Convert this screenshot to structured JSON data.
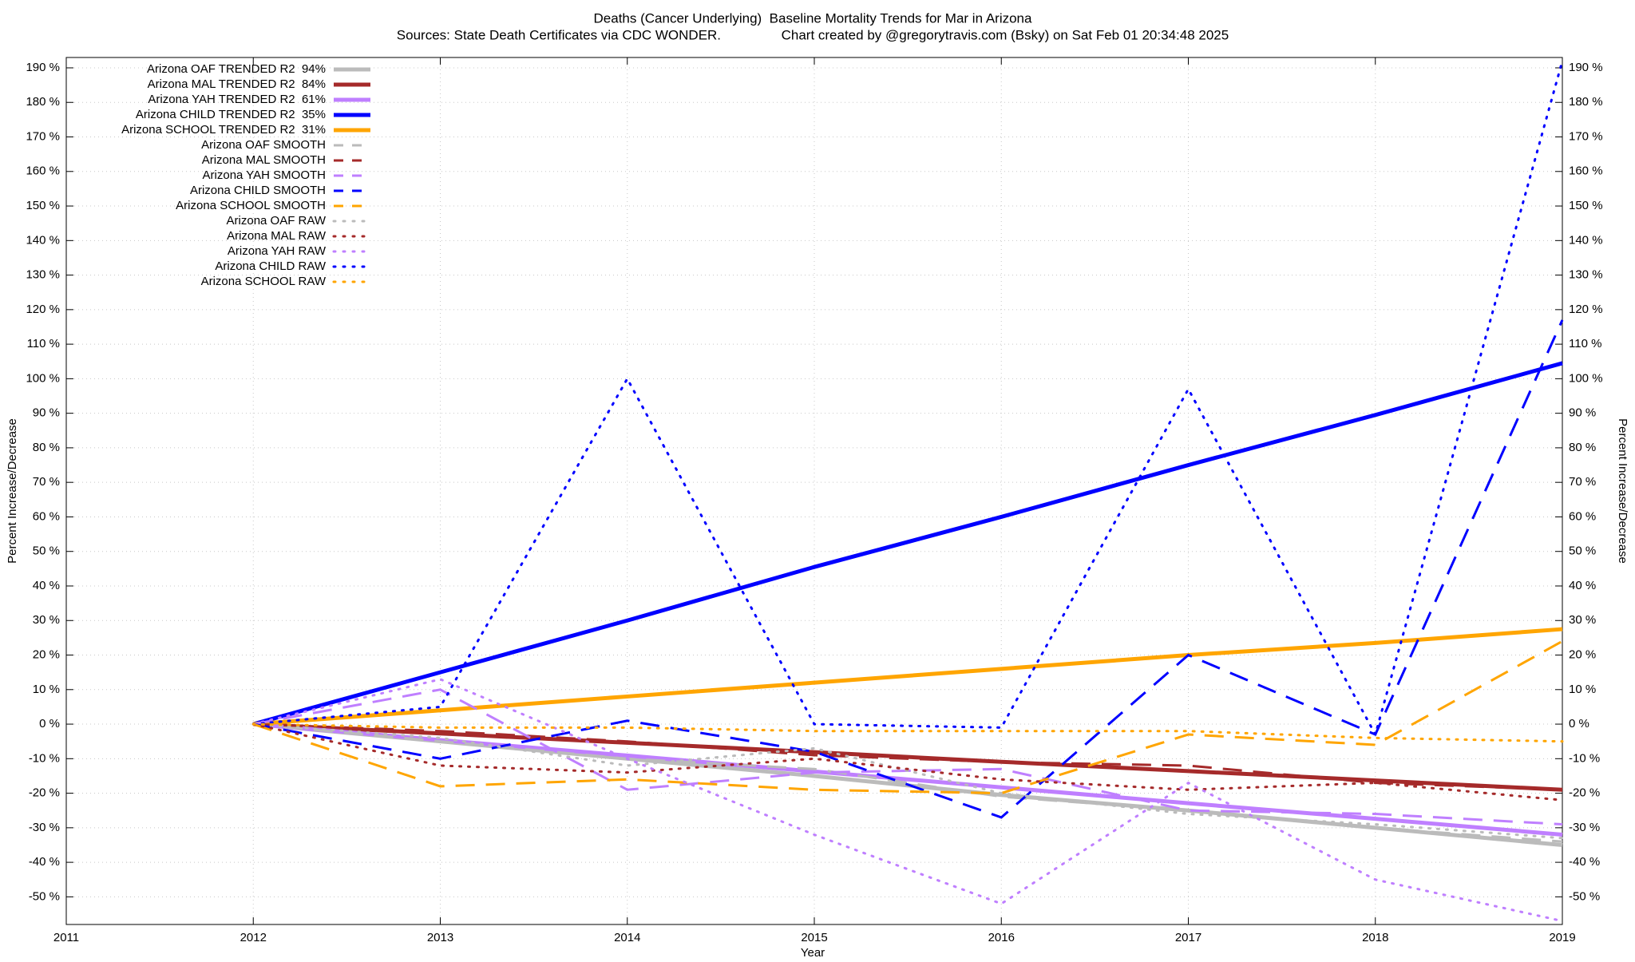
{
  "chart_data": {
    "type": "line",
    "title": "Deaths (Cancer Underlying)  Baseline Mortality Trends for Mar in Arizona",
    "subtitle": "Sources: State Death Certificates via CDC WONDER.                Chart created by @gregorytravis.com (Bsky) on Sat Feb 01 20:34:48 2025",
    "x_label": "Year",
    "y_label": "Percent Increase/Decrease",
    "x": [
      2012,
      2013,
      2014,
      2015,
      2016,
      2017,
      2018,
      2019
    ],
    "xlim": [
      2011,
      2019
    ],
    "xticks": [
      2011,
      2012,
      2013,
      2014,
      2015,
      2016,
      2017,
      2018,
      2019
    ],
    "ylim": [
      -58,
      193
    ],
    "yticks": [
      {
        "value": -50,
        "label": "-50 %"
      },
      {
        "value": -40,
        "label": "-40 %"
      },
      {
        "value": -30,
        "label": "-30 %"
      },
      {
        "value": -20,
        "label": "-20 %"
      },
      {
        "value": -10,
        "label": "-10 %"
      },
      {
        "value": 0,
        "label": "0 %"
      },
      {
        "value": 10,
        "label": "10 %"
      },
      {
        "value": 20,
        "label": "20 %"
      },
      {
        "value": 30,
        "label": "30 %"
      },
      {
        "value": 40,
        "label": "40 %"
      },
      {
        "value": 50,
        "label": "50 %"
      },
      {
        "value": 60,
        "label": "60 %"
      },
      {
        "value": 70,
        "label": "70 %"
      },
      {
        "value": 80,
        "label": "80 %"
      },
      {
        "value": 90,
        "label": "90 %"
      },
      {
        "value": 100,
        "label": "100 %"
      },
      {
        "value": 110,
        "label": "110 %"
      },
      {
        "value": 120,
        "label": "120 %"
      },
      {
        "value": 130,
        "label": "130 %"
      },
      {
        "value": 140,
        "label": "140 %"
      },
      {
        "value": 150,
        "label": "150 %"
      },
      {
        "value": 160,
        "label": "160 %"
      },
      {
        "value": 170,
        "label": "170 %"
      },
      {
        "value": 180,
        "label": "180 %"
      },
      {
        "value": 190,
        "label": "190 %"
      }
    ],
    "grid": true,
    "legend": "top-left",
    "series": [
      {
        "name": "Arizona OAF TRENDED R2  94%",
        "color": "#bbbbbb",
        "style": "solid",
        "values": [
          0,
          -5,
          -10,
          -15,
          -20.5,
          -25,
          -30,
          -35
        ]
      },
      {
        "name": "Arizona MAL TRENDED R2  84%",
        "color": "#a52a2a",
        "style": "solid",
        "values": [
          0,
          -2.7,
          -5.4,
          -8.1,
          -10.9,
          -13.6,
          -16.3,
          -19
        ]
      },
      {
        "name": "Arizona YAH TRENDED R2  61%",
        "color": "#bf7fff",
        "style": "solid",
        "values": [
          0,
          -4.6,
          -9.1,
          -13.7,
          -18.3,
          -22.9,
          -27.4,
          -32
        ]
      },
      {
        "name": "Arizona CHILD TRENDED R2  35%",
        "color": "#0000ff",
        "style": "solid",
        "values": [
          0,
          15,
          30,
          45.5,
          60,
          75,
          89.5,
          104.5
        ]
      },
      {
        "name": "Arizona SCHOOL TRENDED R2  31%",
        "color": "#ffa500",
        "style": "solid",
        "values": [
          0,
          4,
          8,
          12,
          16,
          20,
          23.5,
          27.5
        ]
      },
      {
        "name": "Arizona OAF SMOOTH",
        "color": "#bbbbbb",
        "style": "dashed",
        "values": [
          0,
          -5,
          -10,
          -13,
          -21,
          -25,
          -30,
          -34
        ]
      },
      {
        "name": "Arizona MAL SMOOTH",
        "color": "#a52a2a",
        "style": "dashed",
        "values": [
          0,
          -2,
          -5,
          -9,
          -11,
          -12,
          -17,
          -19
        ]
      },
      {
        "name": "Arizona YAH SMOOTH",
        "color": "#bf7fff",
        "style": "dashed",
        "values": [
          0,
          10,
          -19,
          -14,
          -13,
          -25,
          -26,
          -29
        ]
      },
      {
        "name": "Arizona CHILD SMOOTH",
        "color": "#0000ff",
        "style": "dashed",
        "values": [
          0,
          -10,
          1,
          -8,
          -27,
          20,
          -3,
          117
        ]
      },
      {
        "name": "Arizona SCHOOL SMOOTH",
        "color": "#ffa500",
        "style": "dashed",
        "values": [
          0,
          -18,
          -16,
          -19,
          -20,
          -3,
          -6,
          24
        ]
      },
      {
        "name": "Arizona OAF RAW",
        "color": "#bbbbbb",
        "style": "dotted",
        "values": [
          0,
          -4,
          -12,
          -7,
          -20,
          -26,
          -29,
          -33
        ]
      },
      {
        "name": "Arizona MAL RAW",
        "color": "#a52a2a",
        "style": "dotted",
        "values": [
          0,
          -12,
          -14,
          -10,
          -16,
          -19,
          -17,
          -22
        ]
      },
      {
        "name": "Arizona YAH RAW",
        "color": "#bf7fff",
        "style": "dotted",
        "values": [
          0,
          13,
          -10,
          -32,
          -52,
          -17,
          -45,
          -57
        ]
      },
      {
        "name": "Arizona CHILD RAW",
        "color": "#0000ff",
        "style": "dotted",
        "values": [
          0,
          5,
          100,
          0,
          -1,
          97,
          -3,
          192
        ]
      },
      {
        "name": "Arizona SCHOOL RAW",
        "color": "#ffa500",
        "style": "dotted",
        "values": [
          0,
          -1,
          -1,
          -2,
          -2,
          -2,
          -4,
          -5
        ]
      }
    ]
  }
}
